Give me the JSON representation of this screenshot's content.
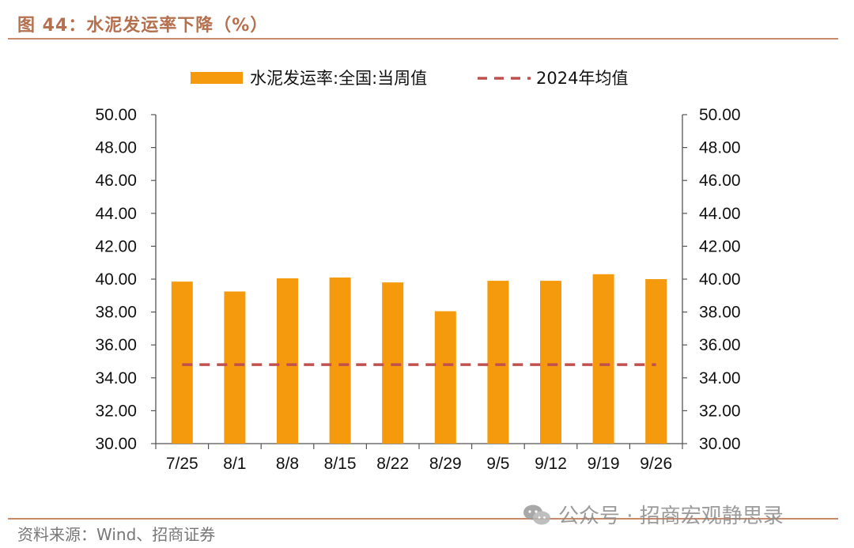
{
  "figure": {
    "title": "图 44：水泥发运率下降（%）",
    "source": "资料来源：Wind、招商证券",
    "watermark": "公众号 · 招商宏观静思录"
  },
  "chart_data": {
    "type": "bar",
    "categories": [
      "7/25",
      "8/1",
      "8/8",
      "8/15",
      "8/22",
      "8/29",
      "9/5",
      "9/12",
      "9/19",
      "9/26"
    ],
    "series": [
      {
        "name": "水泥发运率:全国:当周值",
        "type": "bar",
        "color": "#f59a0c",
        "values": [
          39.85,
          39.25,
          40.05,
          40.1,
          39.8,
          38.05,
          39.9,
          39.9,
          40.3,
          40.0
        ]
      },
      {
        "name": "2024年均值",
        "type": "line-dashed",
        "color": "#c0504d",
        "values": [
          34.8,
          34.8,
          34.8,
          34.8,
          34.8,
          34.8,
          34.8,
          34.8,
          34.8,
          34.8
        ]
      }
    ],
    "ylim": [
      30,
      50
    ],
    "yticks": [
      "30.00",
      "32.00",
      "34.00",
      "36.00",
      "38.00",
      "40.00",
      "42.00",
      "44.00",
      "46.00",
      "48.00",
      "50.00"
    ],
    "secondary_y": true,
    "legend_position": "top",
    "grid": false
  }
}
